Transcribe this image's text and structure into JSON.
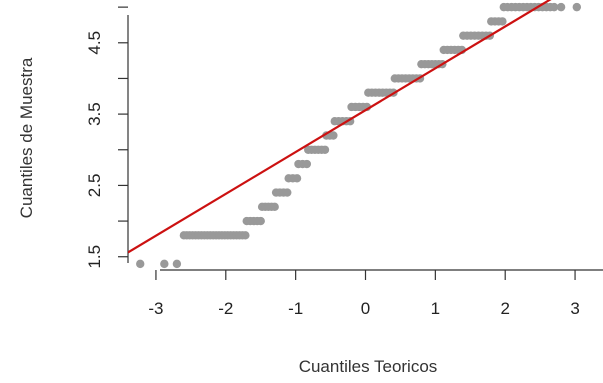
{
  "chart_data": {
    "type": "scatter",
    "title": "",
    "xlabel": "Cuantiles Teoricos",
    "ylabel": "Cuantiles de Muestra",
    "xlim": [
      -3.4,
      3.4
    ],
    "ylim": [
      1.3,
      5.1
    ],
    "x_ticks": [
      -3,
      -2,
      -1,
      0,
      1,
      2,
      3
    ],
    "x_tick_labels": [
      "-3",
      "-2",
      "-1",
      "0",
      "1",
      "2",
      "3"
    ],
    "y_ticks": [
      1.5,
      2.5,
      3.5,
      4.5
    ],
    "y_tick_labels": [
      "1.5",
      "2.5",
      "3.5",
      "4.5"
    ],
    "grid": false,
    "colors": {
      "points": "#999999",
      "reference_line": "#cc1111",
      "axis": "#333333"
    },
    "reference_line": {
      "x": [
        -3.4,
        3.4
      ],
      "y": [
        1.56,
        5.55
      ]
    },
    "series": [
      {
        "groups": [
          {
            "y": 1.4,
            "x_from": -3.25,
            "x_to": -3.2,
            "n": 1
          },
          {
            "y": 1.4,
            "x_from": -2.88,
            "x_to": -2.7,
            "n": 2
          },
          {
            "y": 1.8,
            "x_from": -2.6,
            "x_to": -1.72,
            "n": 22
          },
          {
            "y": 2.0,
            "x_from": -1.7,
            "x_to": -1.5,
            "n": 5
          },
          {
            "y": 2.2,
            "x_from": -1.48,
            "x_to": -1.3,
            "n": 5
          },
          {
            "y": 2.4,
            "x_from": -1.28,
            "x_to": -1.12,
            "n": 4
          },
          {
            "y": 2.6,
            "x_from": -1.1,
            "x_to": -0.98,
            "n": 3
          },
          {
            "y": 2.8,
            "x_from": -0.96,
            "x_to": -0.84,
            "n": 3
          },
          {
            "y": 3.0,
            "x_from": -0.82,
            "x_to": -0.58,
            "n": 6
          },
          {
            "y": 3.2,
            "x_from": -0.56,
            "x_to": -0.46,
            "n": 3
          },
          {
            "y": 3.4,
            "x_from": -0.44,
            "x_to": -0.22,
            "n": 5
          },
          {
            "y": 3.6,
            "x_from": -0.2,
            "x_to": 0.02,
            "n": 5
          },
          {
            "y": 3.8,
            "x_from": 0.04,
            "x_to": 0.4,
            "n": 8
          },
          {
            "y": 4.0,
            "x_from": 0.42,
            "x_to": 0.78,
            "n": 8
          },
          {
            "y": 4.2,
            "x_from": 0.8,
            "x_to": 1.1,
            "n": 7
          },
          {
            "y": 4.4,
            "x_from": 1.12,
            "x_to": 1.38,
            "n": 6
          },
          {
            "y": 4.6,
            "x_from": 1.4,
            "x_to": 1.78,
            "n": 8
          },
          {
            "y": 4.8,
            "x_from": 1.8,
            "x_to": 1.96,
            "n": 4
          },
          {
            "y": 5.0,
            "x_from": 1.98,
            "x_to": 2.7,
            "n": 14
          },
          {
            "y": 5.0,
            "x_from": 2.78,
            "x_to": 2.82,
            "n": 1
          },
          {
            "y": 5.0,
            "x_from": 3.0,
            "x_to": 3.05,
            "n": 1
          }
        ]
      }
    ]
  }
}
